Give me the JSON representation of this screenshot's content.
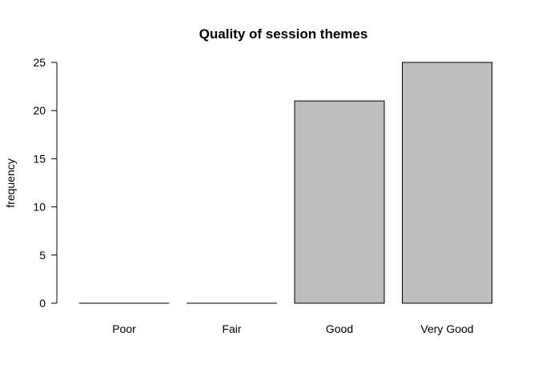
{
  "chart_data": {
    "type": "bar",
    "title": "Quality of session themes",
    "xlabel": "",
    "ylabel": "frequency",
    "categories": [
      "Poor",
      "Fair",
      "Good",
      "Very Good"
    ],
    "values": [
      0,
      0,
      21,
      25
    ],
    "ylim": [
      0,
      25
    ],
    "yticks": [
      0,
      5,
      10,
      15,
      20,
      25
    ],
    "ytick_labels": [
      "0",
      "5",
      "10",
      "15",
      "20",
      "25"
    ],
    "bar_color": "#bebebe",
    "grid": false,
    "legend": "none"
  }
}
